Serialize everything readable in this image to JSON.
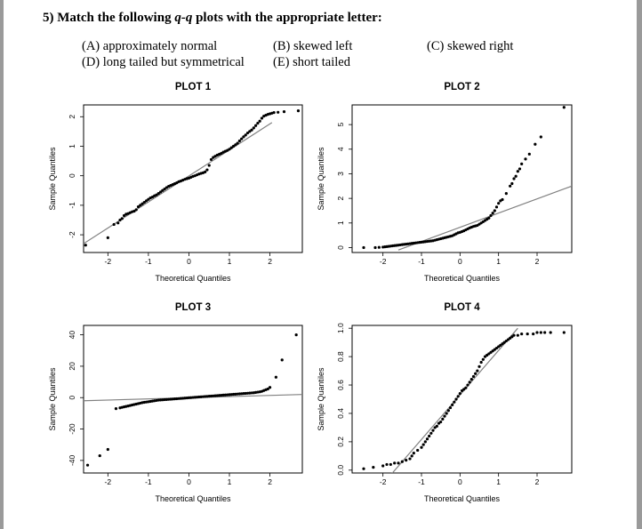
{
  "question": {
    "prefix": "5) Match the following ",
    "qq": "q-q",
    "suffix": " plots with the appropriate letter:"
  },
  "choices": {
    "a": "(A) approximately normal",
    "b": "(B) skewed left",
    "c": "(C) skewed right",
    "d": "(D) long tailed but symmetrical",
    "e": "(E) short tailed"
  },
  "colors": {
    "points": "#000000",
    "reference_line": "#808080",
    "frame": "#000000"
  },
  "chart_data": [
    {
      "type": "scatter",
      "title": "PLOT 1",
      "xlabel": "Theoretical Quantiles",
      "ylabel": "Sample Quantiles",
      "xlim": [
        -2.6,
        2.8
      ],
      "ylim": [
        -2.6,
        2.4
      ],
      "xticks": [
        -2,
        -1,
        0,
        1,
        2
      ],
      "xtick_labels": [
        "-2",
        "-1",
        "0",
        "1",
        "2"
      ],
      "yticks": [
        -2,
        -1,
        0,
        1,
        2
      ],
      "ytick_labels": [
        "-2",
        "-1",
        "0",
        "1",
        "2"
      ],
      "reference_line": {
        "x": [
          -2.6,
          2.05
        ],
        "y": [
          -2.3,
          1.8
        ]
      },
      "x": [
        -2.55,
        -2.0,
        -1.85,
        -1.75,
        -1.7,
        -1.65,
        -1.6,
        -1.55,
        -1.5,
        -1.45,
        -1.4,
        -1.35,
        -1.3,
        -1.25,
        -1.2,
        -1.15,
        -1.1,
        -1.05,
        -1.0,
        -0.95,
        -0.9,
        -0.85,
        -0.8,
        -0.75,
        -0.7,
        -0.65,
        -0.6,
        -0.55,
        -0.5,
        -0.45,
        -0.4,
        -0.35,
        -0.3,
        -0.25,
        -0.2,
        -0.15,
        -0.1,
        -0.05,
        0.0,
        0.05,
        0.1,
        0.15,
        0.2,
        0.25,
        0.3,
        0.35,
        0.4,
        0.45,
        0.5,
        0.55,
        0.6,
        0.65,
        0.7,
        0.75,
        0.8,
        0.85,
        0.9,
        0.95,
        1.0,
        1.05,
        1.1,
        1.15,
        1.2,
        1.25,
        1.3,
        1.35,
        1.4,
        1.45,
        1.5,
        1.55,
        1.6,
        1.65,
        1.7,
        1.75,
        1.8,
        1.85,
        1.9,
        1.95,
        2.0,
        2.05,
        2.1,
        2.2,
        2.35,
        2.7
      ],
      "y": [
        -2.35,
        -2.1,
        -1.65,
        -1.6,
        -1.5,
        -1.45,
        -1.35,
        -1.3,
        -1.28,
        -1.25,
        -1.22,
        -1.2,
        -1.15,
        -1.05,
        -1.0,
        -0.95,
        -0.9,
        -0.85,
        -0.8,
        -0.75,
        -0.72,
        -0.68,
        -0.65,
        -0.6,
        -0.55,
        -0.5,
        -0.45,
        -0.4,
        -0.36,
        -0.33,
        -0.3,
        -0.27,
        -0.24,
        -0.2,
        -0.18,
        -0.15,
        -0.12,
        -0.1,
        -0.08,
        -0.05,
        -0.02,
        0.0,
        0.03,
        0.06,
        0.08,
        0.1,
        0.13,
        0.2,
        0.35,
        0.55,
        0.62,
        0.66,
        0.7,
        0.73,
        0.76,
        0.8,
        0.83,
        0.86,
        0.9,
        0.95,
        1.0,
        1.05,
        1.1,
        1.18,
        1.25,
        1.32,
        1.38,
        1.45,
        1.5,
        1.55,
        1.62,
        1.7,
        1.78,
        1.85,
        1.95,
        2.02,
        2.05,
        2.08,
        2.1,
        2.12,
        2.14,
        2.15,
        2.17,
        2.2
      ]
    },
    {
      "type": "scatter",
      "title": "PLOT 2",
      "xlabel": "Theoretical Quantiles",
      "ylabel": "Sample Quantiles",
      "xlim": [
        -2.8,
        2.9
      ],
      "ylim": [
        -0.2,
        5.8
      ],
      "xticks": [
        -2,
        -1,
        0,
        1,
        2
      ],
      "xtick_labels": [
        "-2",
        "-1",
        "0",
        "1",
        "2"
      ],
      "yticks": [
        0,
        1,
        2,
        3,
        4,
        5
      ],
      "ytick_labels": [
        "0",
        "1",
        "2",
        "3",
        "4",
        "5"
      ],
      "reference_line": {
        "x": [
          -1.6,
          2.9
        ],
        "y": [
          -0.1,
          2.5
        ]
      },
      "x": [
        -2.5,
        -2.2,
        -2.1,
        -2.0,
        -1.95,
        -1.9,
        -1.85,
        -1.8,
        -1.75,
        -1.7,
        -1.65,
        -1.6,
        -1.55,
        -1.5,
        -1.45,
        -1.4,
        -1.35,
        -1.3,
        -1.25,
        -1.2,
        -1.15,
        -1.1,
        -1.05,
        -1.0,
        -0.95,
        -0.9,
        -0.85,
        -0.8,
        -0.75,
        -0.7,
        -0.65,
        -0.6,
        -0.55,
        -0.5,
        -0.45,
        -0.4,
        -0.35,
        -0.3,
        -0.25,
        -0.2,
        -0.15,
        -0.1,
        -0.05,
        0.0,
        0.05,
        0.1,
        0.15,
        0.2,
        0.25,
        0.3,
        0.35,
        0.4,
        0.45,
        0.5,
        0.55,
        0.6,
        0.65,
        0.7,
        0.75,
        0.8,
        0.85,
        0.9,
        0.95,
        1.0,
        1.05,
        1.1,
        1.2,
        1.3,
        1.35,
        1.4,
        1.45,
        1.5,
        1.55,
        1.6,
        1.7,
        1.8,
        1.95,
        2.1,
        2.7
      ],
      "y": [
        0.0,
        0.0,
        0.01,
        0.02,
        0.03,
        0.04,
        0.05,
        0.06,
        0.07,
        0.08,
        0.09,
        0.1,
        0.11,
        0.12,
        0.13,
        0.14,
        0.15,
        0.16,
        0.17,
        0.18,
        0.19,
        0.2,
        0.21,
        0.22,
        0.23,
        0.24,
        0.25,
        0.26,
        0.27,
        0.28,
        0.3,
        0.32,
        0.34,
        0.36,
        0.38,
        0.4,
        0.42,
        0.44,
        0.46,
        0.48,
        0.52,
        0.56,
        0.6,
        0.62,
        0.65,
        0.68,
        0.72,
        0.76,
        0.8,
        0.83,
        0.86,
        0.88,
        0.9,
        0.95,
        1.0,
        1.05,
        1.1,
        1.15,
        1.2,
        1.3,
        1.4,
        1.5,
        1.65,
        1.8,
        1.9,
        1.95,
        2.2,
        2.5,
        2.6,
        2.8,
        2.9,
        3.1,
        3.2,
        3.4,
        3.6,
        3.8,
        4.2,
        4.5,
        5.7
      ]
    },
    {
      "type": "scatter",
      "title": "PLOT 3",
      "xlabel": "Theoretical Quantiles",
      "ylabel": "Sample Quantiles",
      "xlim": [
        -2.6,
        2.8
      ],
      "ylim": [
        -48,
        46
      ],
      "xticks": [
        -2,
        -1,
        0,
        1,
        2
      ],
      "xtick_labels": [
        "-2",
        "-1",
        "0",
        "1",
        "2"
      ],
      "yticks": [
        -40,
        -20,
        0,
        20,
        40
      ],
      "ytick_labels": [
        "-40",
        "-20",
        "0",
        "20",
        "40"
      ],
      "reference_line": {
        "x": [
          -2.6,
          2.8
        ],
        "y": [
          -2,
          2
        ]
      },
      "x": [
        -2.5,
        -2.2,
        -2.0,
        -1.8,
        -1.7,
        -1.65,
        -1.6,
        -1.55,
        -1.5,
        -1.45,
        -1.4,
        -1.35,
        -1.3,
        -1.25,
        -1.2,
        -1.15,
        -1.1,
        -1.05,
        -1.0,
        -0.95,
        -0.9,
        -0.85,
        -0.8,
        -0.75,
        -0.7,
        -0.65,
        -0.6,
        -0.55,
        -0.5,
        -0.45,
        -0.4,
        -0.35,
        -0.3,
        -0.25,
        -0.2,
        -0.15,
        -0.1,
        -0.05,
        0.0,
        0.05,
        0.1,
        0.15,
        0.2,
        0.25,
        0.3,
        0.35,
        0.4,
        0.45,
        0.5,
        0.55,
        0.6,
        0.65,
        0.7,
        0.75,
        0.8,
        0.85,
        0.9,
        0.95,
        1.0,
        1.05,
        1.1,
        1.15,
        1.2,
        1.25,
        1.3,
        1.35,
        1.4,
        1.45,
        1.5,
        1.55,
        1.6,
        1.65,
        1.7,
        1.75,
        1.8,
        1.85,
        1.9,
        1.95,
        2.0,
        2.15,
        2.3,
        2.65
      ],
      "y": [
        -43,
        -37,
        -33,
        -7,
        -6.5,
        -6.2,
        -5.9,
        -5.6,
        -5.3,
        -5.0,
        -4.7,
        -4.4,
        -4.1,
        -3.8,
        -3.5,
        -3.2,
        -3.0,
        -2.8,
        -2.6,
        -2.4,
        -2.2,
        -2.0,
        -1.8,
        -1.6,
        -1.5,
        -1.4,
        -1.3,
        -1.2,
        -1.1,
        -1.0,
        -0.9,
        -0.8,
        -0.7,
        -0.6,
        -0.5,
        -0.4,
        -0.3,
        -0.2,
        -0.1,
        0.0,
        0.1,
        0.2,
        0.3,
        0.4,
        0.5,
        0.6,
        0.7,
        0.8,
        0.9,
        1.0,
        1.1,
        1.2,
        1.3,
        1.4,
        1.5,
        1.6,
        1.7,
        1.8,
        1.9,
        2.0,
        2.1,
        2.2,
        2.3,
        2.4,
        2.5,
        2.6,
        2.7,
        2.8,
        2.9,
        3.0,
        3.1,
        3.3,
        3.5,
        3.7,
        4.0,
        4.5,
        5.0,
        5.5,
        6.5,
        13,
        24,
        40
      ]
    },
    {
      "type": "scatter",
      "title": "PLOT 4",
      "xlabel": "Theoretical Quantiles",
      "ylabel": "Sample Quantiles",
      "xlim": [
        -2.8,
        2.9
      ],
      "ylim": [
        -0.02,
        1.02
      ],
      "xticks": [
        -2,
        -1,
        0,
        1,
        2
      ],
      "xtick_labels": [
        "-2",
        "-1",
        "0",
        "1",
        "2"
      ],
      "yticks": [
        0.0,
        0.2,
        0.4,
        0.6,
        0.8,
        1.0
      ],
      "ytick_labels": [
        "0.0",
        "0.2",
        "0.4",
        "0.6",
        "0.8",
        "1.0"
      ],
      "reference_line": {
        "x": [
          -1.85,
          1.5
        ],
        "y": [
          -0.05,
          1.0
        ]
      },
      "x": [
        -2.5,
        -2.25,
        -2.0,
        -1.9,
        -1.8,
        -1.7,
        -1.6,
        -1.5,
        -1.4,
        -1.3,
        -1.25,
        -1.2,
        -1.1,
        -1.0,
        -0.95,
        -0.9,
        -0.85,
        -0.8,
        -0.75,
        -0.7,
        -0.65,
        -0.6,
        -0.55,
        -0.5,
        -0.45,
        -0.4,
        -0.35,
        -0.3,
        -0.25,
        -0.2,
        -0.15,
        -0.1,
        -0.05,
        0.0,
        0.05,
        0.1,
        0.15,
        0.2,
        0.25,
        0.3,
        0.35,
        0.4,
        0.45,
        0.5,
        0.55,
        0.6,
        0.65,
        0.7,
        0.75,
        0.8,
        0.85,
        0.9,
        0.95,
        1.0,
        1.05,
        1.1,
        1.15,
        1.2,
        1.25,
        1.3,
        1.35,
        1.4,
        1.5,
        1.6,
        1.75,
        1.9,
        2.0,
        2.1,
        2.2,
        2.35,
        2.7
      ],
      "y": [
        0.01,
        0.02,
        0.03,
        0.04,
        0.04,
        0.05,
        0.05,
        0.06,
        0.07,
        0.08,
        0.1,
        0.12,
        0.14,
        0.16,
        0.18,
        0.2,
        0.22,
        0.24,
        0.26,
        0.28,
        0.3,
        0.31,
        0.33,
        0.34,
        0.36,
        0.38,
        0.4,
        0.42,
        0.44,
        0.46,
        0.48,
        0.5,
        0.52,
        0.54,
        0.56,
        0.57,
        0.58,
        0.6,
        0.62,
        0.64,
        0.66,
        0.68,
        0.7,
        0.73,
        0.76,
        0.78,
        0.8,
        0.81,
        0.82,
        0.83,
        0.84,
        0.85,
        0.86,
        0.87,
        0.88,
        0.89,
        0.9,
        0.91,
        0.92,
        0.93,
        0.94,
        0.95,
        0.95,
        0.96,
        0.96,
        0.96,
        0.97,
        0.97,
        0.97,
        0.97,
        0.97
      ]
    }
  ]
}
